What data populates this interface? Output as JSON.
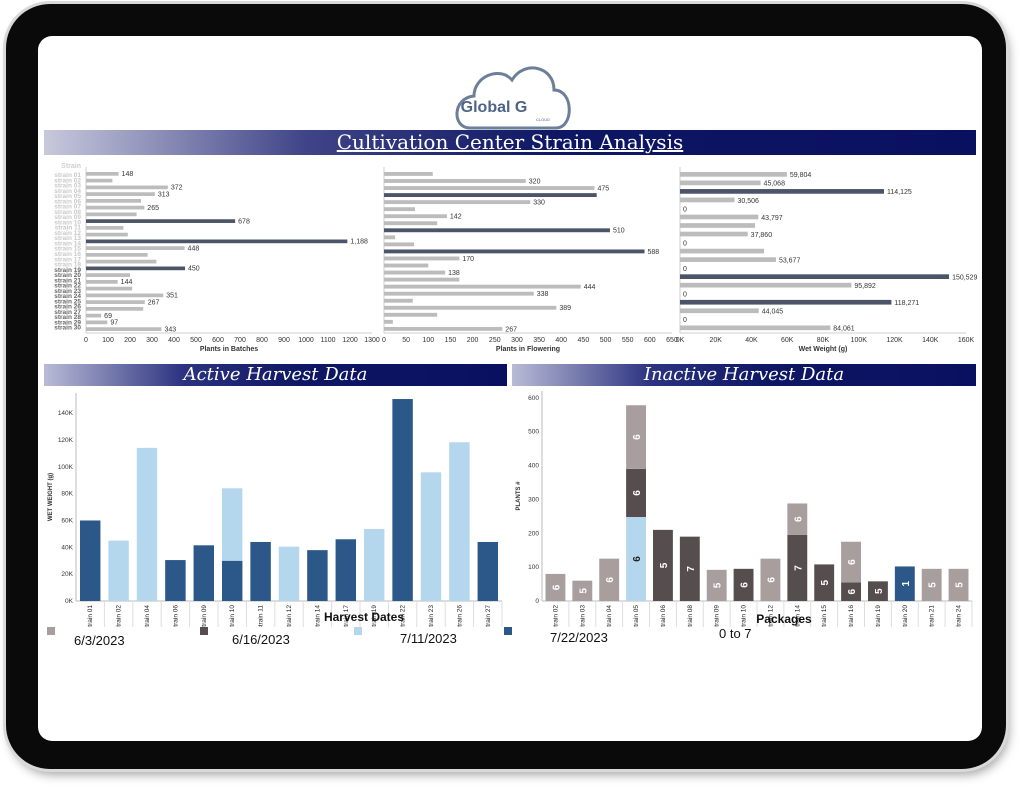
{
  "logo": {
    "text": "Global G",
    "sub": "CLOUD"
  },
  "header": {
    "title": "Cultivation Center Strain Analysis"
  },
  "colors": {
    "light_gray": "#bcbcbc",
    "dark_slate": "#4b5468",
    "navy": "#0e1763",
    "steel_blue": "#2b5789",
    "light_blue": "#b5d7ee",
    "taupe": "#a99e9e",
    "dark_taupe": "#564e4e"
  },
  "strain_analysis": {
    "axis_header": "Strain",
    "strains": [
      "strain 01",
      "strain 02",
      "strain 03",
      "strain 04",
      "strain 05",
      "strain 06",
      "strain 07",
      "strain 08",
      "strain 09",
      "strain 10",
      "strain 11",
      "strain 12",
      "strain 13",
      "strain 14",
      "strain 15",
      "strain 16",
      "strain 17",
      "strain 18",
      "strain 19",
      "strain 20",
      "strain 21",
      "strain 22",
      "strain 23",
      "strain 24",
      "strain 25",
      "strain 26",
      "strain 27",
      "strain 28",
      "strain 29",
      "strain 30"
    ],
    "panels": [
      {
        "xlabel": "Plants in Batches",
        "ticks": [
          "0",
          "100",
          "200",
          "300",
          "400",
          "500",
          "600",
          "700",
          "800",
          "900",
          "1000",
          "1100",
          "1200",
          "1300"
        ],
        "max": 1300,
        "rows": [
          {
            "upper": 148,
            "label": "148"
          },
          {
            "upper": 120
          },
          {
            "upper": 372,
            "label": "372"
          },
          {
            "upper": 313,
            "label": "313"
          },
          {
            "upper": 250
          },
          {
            "upper": 265,
            "label": "265"
          },
          {
            "upper": 230
          },
          {
            "upper": 678,
            "label": "678",
            "dark": true
          },
          {
            "upper": 170
          },
          {
            "upper": 190
          },
          {
            "upper": 1188,
            "label": "1,188",
            "dark": true
          },
          {
            "upper": 448,
            "label": "448"
          },
          {
            "upper": 280
          },
          {
            "upper": 320
          },
          {
            "upper": 450,
            "label": "450",
            "dark": true
          },
          {
            "upper": 200
          },
          {
            "upper": 144,
            "label": "144"
          },
          {
            "upper": 210
          },
          {
            "upper": 351,
            "label": "351"
          },
          {
            "upper": 267,
            "label": "267"
          },
          {
            "upper": 260
          },
          {
            "upper": 69,
            "label": "69"
          },
          {
            "upper": 97,
            "label": "97"
          },
          {
            "upper": 343,
            "label": "343"
          }
        ]
      },
      {
        "xlabel": "Plants in Flowering",
        "ticks": [
          "0",
          "50",
          "100",
          "150",
          "200",
          "250",
          "300",
          "350",
          "400",
          "450",
          "500",
          "550",
          "600",
          "650"
        ],
        "max": 650,
        "rows": [
          {
            "upper": 110
          },
          {
            "upper": 320,
            "label": "320"
          },
          {
            "upper": 475,
            "label": "475"
          },
          {
            "upper": 480,
            "dark": true
          },
          {
            "upper": 330,
            "label": "330"
          },
          {
            "upper": 70
          },
          {
            "upper": 142,
            "label": "142"
          },
          {
            "upper": 120
          },
          {
            "upper": 510,
            "label": "510",
            "dark": true
          },
          {
            "upper": 25
          },
          {
            "upper": 68
          },
          {
            "upper": 588,
            "label": "588",
            "dark": true
          },
          {
            "upper": 170,
            "label": "170"
          },
          {
            "upper": 100
          },
          {
            "upper": 138,
            "label": "138"
          },
          {
            "upper": 170
          },
          {
            "upper": 444,
            "label": "444"
          },
          {
            "upper": 338,
            "label": "338"
          },
          {
            "upper": 65
          },
          {
            "upper": 389,
            "label": "389"
          },
          {
            "upper": 120
          },
          {
            "upper": 20
          },
          {
            "upper": 267,
            "label": "267"
          }
        ]
      },
      {
        "xlabel": "Wet Weight (g)",
        "ticks": [
          "0K",
          "20K",
          "40K",
          "60K",
          "80K",
          "100K",
          "120K",
          "140K",
          "160K"
        ],
        "max": 160000,
        "rows": [
          {
            "upper": 59804,
            "label": "59,804"
          },
          {
            "upper": 45068,
            "label": "45,068"
          },
          {
            "upper": 114125,
            "label": "114,125",
            "dark": true
          },
          {
            "upper": 30506,
            "label": "30,506"
          },
          {
            "upper": 0,
            "label": "0"
          },
          {
            "upper": 43797,
            "label": "43,797"
          },
          {
            "upper": 42000
          },
          {
            "upper": 37860,
            "label": "37,860"
          },
          {
            "upper": 0,
            "label": "0"
          },
          {
            "upper": 47000
          },
          {
            "upper": 53677,
            "label": "53,677"
          },
          {
            "upper": 0,
            "label": "0"
          },
          {
            "upper": 150529,
            "label": "150,529",
            "dark": true
          },
          {
            "upper": 95892,
            "label": "95,892"
          },
          {
            "upper": 0,
            "label": "0"
          },
          {
            "upper": 118271,
            "label": "118,271",
            "dark": true
          },
          {
            "upper": 44045,
            "label": "44,045"
          },
          {
            "upper": 0,
            "label": "0"
          },
          {
            "upper": 84061,
            "label": "84,061"
          }
        ]
      }
    ]
  },
  "active_harvest": {
    "title": "Active Harvest Data",
    "ylabel": "WET WEIGHT (g)",
    "xlabel": "Harvest Dates",
    "yticks": [
      "0K",
      "20K",
      "40K",
      "60K",
      "80K",
      "100K",
      "120K",
      "140K"
    ],
    "ymax": 155000,
    "chart_data": {
      "type": "bar",
      "categories": [
        "strain 01",
        "strain 02",
        "strain 04",
        "strain 06",
        "strain 09",
        "strain 10",
        "strain 11",
        "strain 12",
        "strain 14",
        "strain 17",
        "strain 19",
        "strain 22",
        "strain 23",
        "strain 26",
        "strain 27"
      ],
      "series": [
        {
          "name": "7/22/2023",
          "color": "#2b5789",
          "values": [
            60000,
            0,
            0,
            30500,
            41500,
            30000,
            44000,
            0,
            37900,
            46000,
            0,
            150500,
            0,
            0,
            44000
          ]
        },
        {
          "name": "7/11/2023",
          "color": "#b5d7ee",
          "values": [
            0,
            45000,
            114100,
            0,
            0,
            54000,
            0,
            40500,
            0,
            0,
            53700,
            0,
            95900,
            118300,
            0
          ]
        }
      ]
    }
  },
  "inactive_harvest": {
    "title": "Inactive Harvest Data",
    "ylabel": "PLANTS #",
    "xlabel": "Packages",
    "range_label": "0 to 7",
    "yticks": [
      "0",
      "100",
      "200",
      "300",
      "400",
      "500",
      "600"
    ],
    "ymax": 620,
    "chart_data": {
      "type": "bar",
      "categories": [
        "strain 02",
        "strain 03",
        "strain 04",
        "strain 05",
        "strain 06",
        "strain 08",
        "strain 09",
        "strain 10",
        "strain 12",
        "strain 14",
        "strain 15",
        "strain 16",
        "strain 19",
        "strain 20",
        "strain 21",
        "strain 24"
      ],
      "stacks": [
        [
          {
            "v": 80,
            "c": "taupe",
            "l": "6"
          }
        ],
        [
          {
            "v": 60,
            "c": "taupe",
            "l": "5"
          }
        ],
        [
          {
            "v": 125,
            "c": "taupe",
            "l": "6"
          }
        ],
        [
          {
            "v": 248,
            "c": "lightblue",
            "l": "6"
          },
          {
            "v": 142,
            "c": "dark",
            "l": "6"
          },
          {
            "v": 188,
            "c": "taupe",
            "l": "6"
          }
        ],
        [
          {
            "v": 210,
            "c": "dark",
            "l": "5"
          }
        ],
        [
          {
            "v": 190,
            "c": "dark",
            "l": "7"
          }
        ],
        [
          {
            "v": 92,
            "c": "taupe",
            "l": "5"
          }
        ],
        [
          {
            "v": 95,
            "c": "dark",
            "l": "6"
          }
        ],
        [
          {
            "v": 125,
            "c": "taupe",
            "l": "6"
          }
        ],
        [
          {
            "v": 195,
            "c": "dark",
            "l": "7"
          },
          {
            "v": 93,
            "c": "taupe",
            "l": "6"
          }
        ],
        [
          {
            "v": 108,
            "c": "dark",
            "l": "5"
          }
        ],
        [
          {
            "v": 55,
            "c": "dark",
            "l": "6"
          },
          {
            "v": 120,
            "c": "taupe",
            "l": "6"
          }
        ],
        [
          {
            "v": 58,
            "c": "dark",
            "l": "5"
          }
        ],
        [
          {
            "v": 102,
            "c": "steel",
            "l": "1"
          }
        ],
        [
          {
            "v": 95,
            "c": "taupe",
            "l": "5"
          }
        ],
        [
          {
            "v": 95,
            "c": "taupe",
            "l": "5"
          }
        ]
      ]
    }
  },
  "legend": [
    {
      "label": "6/3/2023",
      "color": "#a99e9e"
    },
    {
      "label": "6/16/2023",
      "color": "#564e4e"
    },
    {
      "label": "7/11/2023",
      "color": "#b5d7ee"
    },
    {
      "label": "7/22/2023",
      "color": "#2b5789"
    }
  ]
}
